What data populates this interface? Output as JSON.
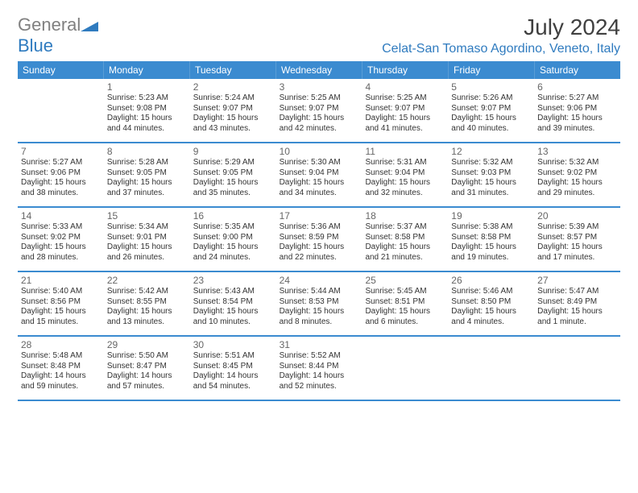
{
  "logo": {
    "part1": "General",
    "part2": "Blue"
  },
  "title": "July 2024",
  "location": "Celat-San Tomaso Agordino, Veneto, Italy",
  "colors": {
    "header_bg": "#3b8bd0",
    "header_text": "#ffffff",
    "accent": "#2f7bbf",
    "logo_gray": "#808080",
    "title_color": "#404040",
    "body_text": "#333333",
    "daynum_color": "#666666",
    "row_divider": "#3b8bd0"
  },
  "fonts": {
    "title_size": 28,
    "location_size": 16,
    "header_size": 12,
    "body_size": 10
  },
  "day_headers": [
    "Sunday",
    "Monday",
    "Tuesday",
    "Wednesday",
    "Thursday",
    "Friday",
    "Saturday"
  ],
  "weeks": [
    [
      null,
      {
        "n": "1",
        "sr": "Sunrise: 5:23 AM",
        "ss": "Sunset: 9:08 PM",
        "d1": "Daylight: 15 hours",
        "d2": "and 44 minutes."
      },
      {
        "n": "2",
        "sr": "Sunrise: 5:24 AM",
        "ss": "Sunset: 9:07 PM",
        "d1": "Daylight: 15 hours",
        "d2": "and 43 minutes."
      },
      {
        "n": "3",
        "sr": "Sunrise: 5:25 AM",
        "ss": "Sunset: 9:07 PM",
        "d1": "Daylight: 15 hours",
        "d2": "and 42 minutes."
      },
      {
        "n": "4",
        "sr": "Sunrise: 5:25 AM",
        "ss": "Sunset: 9:07 PM",
        "d1": "Daylight: 15 hours",
        "d2": "and 41 minutes."
      },
      {
        "n": "5",
        "sr": "Sunrise: 5:26 AM",
        "ss": "Sunset: 9:07 PM",
        "d1": "Daylight: 15 hours",
        "d2": "and 40 minutes."
      },
      {
        "n": "6",
        "sr": "Sunrise: 5:27 AM",
        "ss": "Sunset: 9:06 PM",
        "d1": "Daylight: 15 hours",
        "d2": "and 39 minutes."
      }
    ],
    [
      {
        "n": "7",
        "sr": "Sunrise: 5:27 AM",
        "ss": "Sunset: 9:06 PM",
        "d1": "Daylight: 15 hours",
        "d2": "and 38 minutes."
      },
      {
        "n": "8",
        "sr": "Sunrise: 5:28 AM",
        "ss": "Sunset: 9:05 PM",
        "d1": "Daylight: 15 hours",
        "d2": "and 37 minutes."
      },
      {
        "n": "9",
        "sr": "Sunrise: 5:29 AM",
        "ss": "Sunset: 9:05 PM",
        "d1": "Daylight: 15 hours",
        "d2": "and 35 minutes."
      },
      {
        "n": "10",
        "sr": "Sunrise: 5:30 AM",
        "ss": "Sunset: 9:04 PM",
        "d1": "Daylight: 15 hours",
        "d2": "and 34 minutes."
      },
      {
        "n": "11",
        "sr": "Sunrise: 5:31 AM",
        "ss": "Sunset: 9:04 PM",
        "d1": "Daylight: 15 hours",
        "d2": "and 32 minutes."
      },
      {
        "n": "12",
        "sr": "Sunrise: 5:32 AM",
        "ss": "Sunset: 9:03 PM",
        "d1": "Daylight: 15 hours",
        "d2": "and 31 minutes."
      },
      {
        "n": "13",
        "sr": "Sunrise: 5:32 AM",
        "ss": "Sunset: 9:02 PM",
        "d1": "Daylight: 15 hours",
        "d2": "and 29 minutes."
      }
    ],
    [
      {
        "n": "14",
        "sr": "Sunrise: 5:33 AM",
        "ss": "Sunset: 9:02 PM",
        "d1": "Daylight: 15 hours",
        "d2": "and 28 minutes."
      },
      {
        "n": "15",
        "sr": "Sunrise: 5:34 AM",
        "ss": "Sunset: 9:01 PM",
        "d1": "Daylight: 15 hours",
        "d2": "and 26 minutes."
      },
      {
        "n": "16",
        "sr": "Sunrise: 5:35 AM",
        "ss": "Sunset: 9:00 PM",
        "d1": "Daylight: 15 hours",
        "d2": "and 24 minutes."
      },
      {
        "n": "17",
        "sr": "Sunrise: 5:36 AM",
        "ss": "Sunset: 8:59 PM",
        "d1": "Daylight: 15 hours",
        "d2": "and 22 minutes."
      },
      {
        "n": "18",
        "sr": "Sunrise: 5:37 AM",
        "ss": "Sunset: 8:58 PM",
        "d1": "Daylight: 15 hours",
        "d2": "and 21 minutes."
      },
      {
        "n": "19",
        "sr": "Sunrise: 5:38 AM",
        "ss": "Sunset: 8:58 PM",
        "d1": "Daylight: 15 hours",
        "d2": "and 19 minutes."
      },
      {
        "n": "20",
        "sr": "Sunrise: 5:39 AM",
        "ss": "Sunset: 8:57 PM",
        "d1": "Daylight: 15 hours",
        "d2": "and 17 minutes."
      }
    ],
    [
      {
        "n": "21",
        "sr": "Sunrise: 5:40 AM",
        "ss": "Sunset: 8:56 PM",
        "d1": "Daylight: 15 hours",
        "d2": "and 15 minutes."
      },
      {
        "n": "22",
        "sr": "Sunrise: 5:42 AM",
        "ss": "Sunset: 8:55 PM",
        "d1": "Daylight: 15 hours",
        "d2": "and 13 minutes."
      },
      {
        "n": "23",
        "sr": "Sunrise: 5:43 AM",
        "ss": "Sunset: 8:54 PM",
        "d1": "Daylight: 15 hours",
        "d2": "and 10 minutes."
      },
      {
        "n": "24",
        "sr": "Sunrise: 5:44 AM",
        "ss": "Sunset: 8:53 PM",
        "d1": "Daylight: 15 hours",
        "d2": "and 8 minutes."
      },
      {
        "n": "25",
        "sr": "Sunrise: 5:45 AM",
        "ss": "Sunset: 8:51 PM",
        "d1": "Daylight: 15 hours",
        "d2": "and 6 minutes."
      },
      {
        "n": "26",
        "sr": "Sunrise: 5:46 AM",
        "ss": "Sunset: 8:50 PM",
        "d1": "Daylight: 15 hours",
        "d2": "and 4 minutes."
      },
      {
        "n": "27",
        "sr": "Sunrise: 5:47 AM",
        "ss": "Sunset: 8:49 PM",
        "d1": "Daylight: 15 hours",
        "d2": "and 1 minute."
      }
    ],
    [
      {
        "n": "28",
        "sr": "Sunrise: 5:48 AM",
        "ss": "Sunset: 8:48 PM",
        "d1": "Daylight: 14 hours",
        "d2": "and 59 minutes."
      },
      {
        "n": "29",
        "sr": "Sunrise: 5:50 AM",
        "ss": "Sunset: 8:47 PM",
        "d1": "Daylight: 14 hours",
        "d2": "and 57 minutes."
      },
      {
        "n": "30",
        "sr": "Sunrise: 5:51 AM",
        "ss": "Sunset: 8:45 PM",
        "d1": "Daylight: 14 hours",
        "d2": "and 54 minutes."
      },
      {
        "n": "31",
        "sr": "Sunrise: 5:52 AM",
        "ss": "Sunset: 8:44 PM",
        "d1": "Daylight: 14 hours",
        "d2": "and 52 minutes."
      },
      null,
      null,
      null
    ]
  ]
}
